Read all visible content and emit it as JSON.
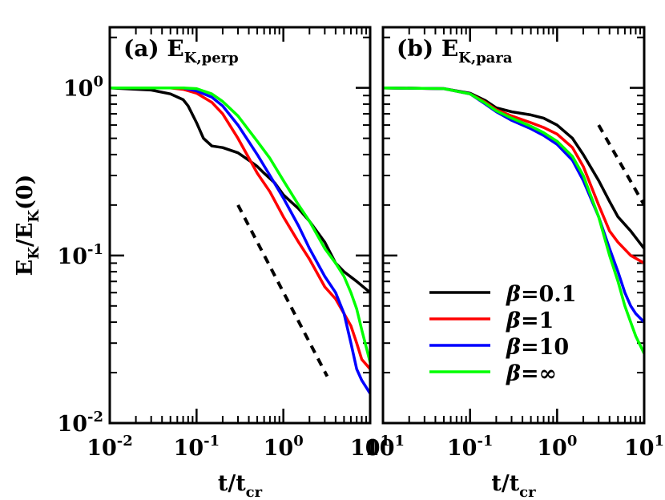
{
  "chart_data": [
    {
      "type": "line",
      "panel": "a",
      "panel_letter": "(a)",
      "panel_symbol": "E",
      "panel_subscript": "K,perp",
      "xscale": "log",
      "yscale": "log",
      "xlim": [
        0.01,
        10
      ],
      "ylim": [
        0.01,
        2.3
      ],
      "xlabel": "t/t",
      "xlabel_sub": "cr",
      "ylabel": {
        "e1": "E",
        "s1": "K",
        "mid": "/E",
        "s2": "K",
        "tail": "(0)"
      },
      "x_ticks": [
        {
          "value": 0.01,
          "base": "10",
          "exp": "-2"
        },
        {
          "value": 0.1,
          "base": "10",
          "exp": "-1"
        },
        {
          "value": 1,
          "base": "10",
          "exp": "0"
        },
        {
          "value": 10,
          "base": "10",
          "exp": "1"
        }
      ],
      "y_ticks": [
        {
          "value": 1,
          "base": "10",
          "exp": "0"
        },
        {
          "value": 0.1,
          "base": "10",
          "exp": "-1"
        },
        {
          "value": 0.01,
          "base": "10",
          "exp": "-2"
        }
      ],
      "reference_line": {
        "x": [
          0.3,
          3.2
        ],
        "y": [
          0.2,
          0.019
        ]
      },
      "series": [
        {
          "name": "β=0.1",
          "color": "#000000",
          "x": [
            0.01,
            0.03,
            0.05,
            0.07,
            0.08,
            0.1,
            0.12,
            0.15,
            0.2,
            0.3,
            0.4,
            0.5,
            0.6,
            0.8,
            1.0,
            1.5,
            2.0,
            3.0,
            4.0,
            5.0,
            7.0,
            10.0
          ],
          "y": [
            1.0,
            0.97,
            0.92,
            0.85,
            0.78,
            0.62,
            0.5,
            0.45,
            0.44,
            0.41,
            0.37,
            0.34,
            0.31,
            0.27,
            0.23,
            0.19,
            0.16,
            0.12,
            0.09,
            0.08,
            0.07,
            0.06
          ]
        },
        {
          "name": "β=1",
          "color": "#ff0000",
          "x": [
            0.01,
            0.05,
            0.07,
            0.1,
            0.15,
            0.2,
            0.3,
            0.5,
            0.7,
            1.0,
            1.5,
            2.0,
            3.0,
            4.0,
            5.0,
            6.0,
            7.0,
            8.0,
            10.0
          ],
          "y": [
            1.0,
            1.0,
            0.98,
            0.93,
            0.82,
            0.7,
            0.5,
            0.31,
            0.24,
            0.17,
            0.12,
            0.095,
            0.065,
            0.055,
            0.045,
            0.038,
            0.03,
            0.024,
            0.021
          ]
        },
        {
          "name": "β=10",
          "color": "#0000ff",
          "x": [
            0.01,
            0.05,
            0.07,
            0.1,
            0.15,
            0.2,
            0.3,
            0.5,
            0.7,
            1.0,
            1.5,
            2.0,
            3.0,
            4.0,
            5.0,
            6.0,
            7.0,
            8.0,
            10.0
          ],
          "y": [
            1.0,
            1.0,
            1.0,
            0.96,
            0.88,
            0.78,
            0.6,
            0.4,
            0.3,
            0.22,
            0.15,
            0.11,
            0.075,
            0.06,
            0.045,
            0.03,
            0.021,
            0.018,
            0.015
          ]
        },
        {
          "name": "β=∞",
          "color": "#00ff00",
          "x": [
            0.01,
            0.05,
            0.07,
            0.1,
            0.15,
            0.2,
            0.3,
            0.5,
            0.7,
            1.0,
            1.5,
            2.0,
            3.0,
            4.0,
            5.0,
            6.0,
            7.0,
            8.0,
            10.0
          ],
          "y": [
            1.0,
            1.0,
            1.0,
            0.99,
            0.92,
            0.83,
            0.68,
            0.48,
            0.38,
            0.28,
            0.2,
            0.16,
            0.11,
            0.09,
            0.075,
            0.06,
            0.048,
            0.036,
            0.023
          ]
        }
      ]
    },
    {
      "type": "line",
      "panel": "b",
      "panel_letter": "(b)",
      "panel_symbol": "E",
      "panel_subscript": "K,para",
      "xscale": "log",
      "yscale": "log",
      "xlim": [
        0.01,
        10
      ],
      "ylim": [
        0.01,
        2.3
      ],
      "xlabel": "t/t",
      "xlabel_sub": "cr",
      "x_ticks": [
        {
          "value": 0.1,
          "base": "10",
          "exp": "-1"
        },
        {
          "value": 1,
          "base": "10",
          "exp": "0"
        },
        {
          "value": 10,
          "base": "10",
          "exp": "1"
        }
      ],
      "x_left_label": {
        "base": "10",
        "exp": "1"
      },
      "reference_line": {
        "x": [
          3.0,
          10.0
        ],
        "y": [
          0.6,
          0.2
        ]
      },
      "series": [
        {
          "name": "β=0.1",
          "color": "#000000",
          "x": [
            0.01,
            0.05,
            0.1,
            0.15,
            0.2,
            0.3,
            0.5,
            0.7,
            1.0,
            1.5,
            2.0,
            3.0,
            4.0,
            5.0,
            7.0,
            10.0
          ],
          "y": [
            1.0,
            0.99,
            0.93,
            0.84,
            0.76,
            0.72,
            0.69,
            0.66,
            0.6,
            0.5,
            0.4,
            0.28,
            0.21,
            0.17,
            0.14,
            0.11
          ]
        },
        {
          "name": "β=1",
          "color": "#ff0000",
          "x": [
            0.01,
            0.05,
            0.1,
            0.15,
            0.2,
            0.3,
            0.5,
            0.7,
            1.0,
            1.5,
            2.0,
            3.0,
            4.0,
            5.0,
            7.0,
            10.0
          ],
          "y": [
            1.0,
            0.99,
            0.92,
            0.82,
            0.74,
            0.68,
            0.62,
            0.58,
            0.53,
            0.44,
            0.34,
            0.2,
            0.14,
            0.12,
            0.1,
            0.09
          ]
        },
        {
          "name": "β=10",
          "color": "#0000ff",
          "x": [
            0.01,
            0.05,
            0.1,
            0.15,
            0.2,
            0.3,
            0.5,
            0.7,
            1.0,
            1.5,
            2.0,
            3.0,
            4.0,
            5.0,
            6.0,
            7.0,
            8.0,
            10.0
          ],
          "y": [
            1.0,
            0.99,
            0.92,
            0.8,
            0.72,
            0.64,
            0.57,
            0.52,
            0.46,
            0.37,
            0.28,
            0.17,
            0.11,
            0.08,
            0.06,
            0.05,
            0.045,
            0.04
          ]
        },
        {
          "name": "β=∞",
          "color": "#00ff00",
          "x": [
            0.01,
            0.05,
            0.1,
            0.15,
            0.2,
            0.3,
            0.5,
            0.7,
            1.0,
            1.5,
            2.0,
            3.0,
            4.0,
            5.0,
            6.0,
            7.0,
            8.0,
            10.0
          ],
          "y": [
            1.0,
            0.99,
            0.92,
            0.81,
            0.73,
            0.66,
            0.59,
            0.54,
            0.48,
            0.39,
            0.3,
            0.17,
            0.1,
            0.07,
            0.05,
            0.04,
            0.033,
            0.026
          ]
        }
      ]
    }
  ],
  "legend": [
    {
      "prefix": "β",
      "eq": "=",
      "value": "0.1",
      "color": "#000000"
    },
    {
      "prefix": "β",
      "eq": "=",
      "value": "1",
      "color": "#ff0000"
    },
    {
      "prefix": "β",
      "eq": "=",
      "value": "10",
      "color": "#0000ff"
    },
    {
      "prefix": "β",
      "eq": "=",
      "value": "∞",
      "color": "#00ff00"
    }
  ],
  "legend_placement": "lower-left of panel b"
}
